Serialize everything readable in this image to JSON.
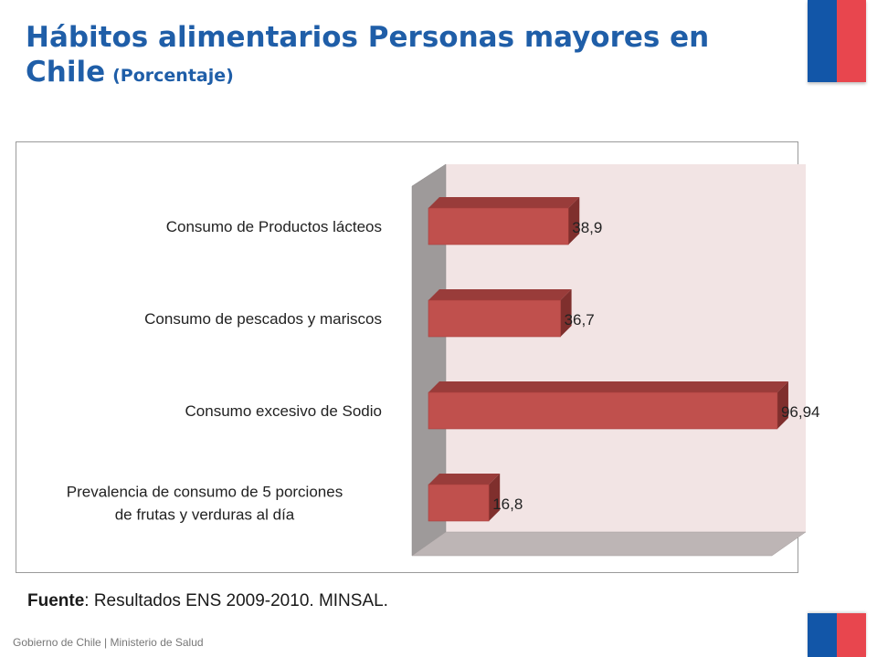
{
  "header": {
    "title": "Hábitos alimentarios Personas mayores en Chile",
    "subtitle": "(Porcentaje)"
  },
  "source": {
    "label": "Fuente",
    "text": ": Resultados ENS 2009-2010. MINSAL."
  },
  "footer": {
    "text": "Gobierno de Chile | Ministerio de Salud"
  },
  "colors": {
    "title": "#1f5ea8",
    "bar_front": "#c0504d",
    "bar_top": "#993c3a",
    "bar_side": "#7f2f2d",
    "wall_back": "#f2e4e4",
    "wall_side": "#9e9a9a",
    "floor": "#bdb5b5",
    "flag_blue": "#1256a8",
    "flag_red": "#e8464e"
  },
  "chart_data": {
    "type": "bar",
    "orientation": "horizontal",
    "style": "3d",
    "categories": [
      "Consumo de Productos lácteos",
      "Consumo de pescados y mariscos",
      "Consumo excesivo de Sodio",
      "Prevalencia de consumo de  5 porciones de frutas y verduras al día"
    ],
    "category_lines": [
      [
        "Consumo de Productos lácteos"
      ],
      [
        "Consumo de pescados y mariscos"
      ],
      [
        "Consumo excesivo de Sodio"
      ],
      [
        "Prevalencia de consumo de  5 porciones",
        "de frutas y verduras al día"
      ]
    ],
    "values": [
      38.9,
      36.7,
      96.94,
      16.8
    ],
    "data_labels": [
      "38,9",
      "36,7",
      "96,94",
      "16,8"
    ],
    "xlim": [
      0,
      100
    ],
    "grid": false,
    "legend": "none"
  }
}
